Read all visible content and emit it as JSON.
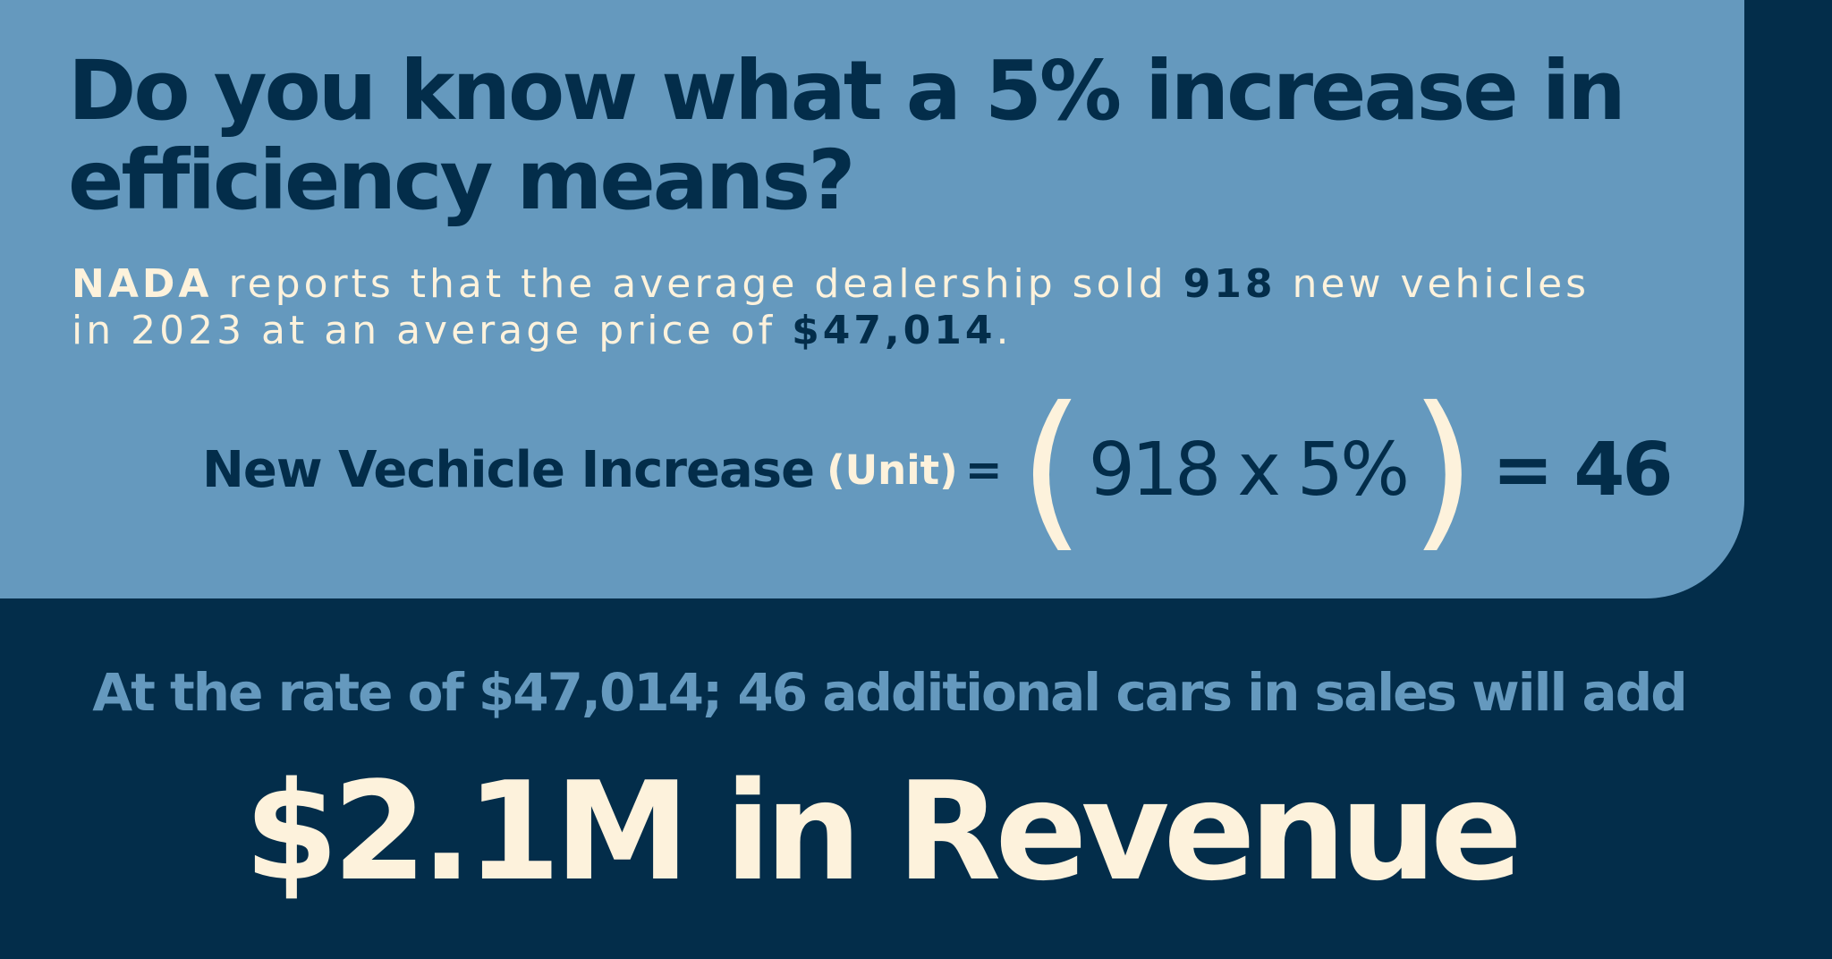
{
  "headline": "Do you know what a 5% increase in efficiency means?",
  "report": {
    "source": "NADA",
    "text_1": " reports that the average dealership sold ",
    "units_sold": "918",
    "text_2": " new vehicles in 2023 at an average price of ",
    "average_price": "$47,014",
    "text_3": "."
  },
  "formula": {
    "label": "New Vechicle Increase",
    "unit": "(Unit)",
    "equals": "=",
    "open_paren": "(",
    "expression": "918 x 5%",
    "close_paren": ")",
    "result": "= 46"
  },
  "rate_line": "At the rate of $47,014; 46 additional cars in sales will add",
  "big_total": "$2.1M in Revenue",
  "colors": {
    "navy": "#032d4a",
    "steel_blue": "#6599be",
    "cream": "#fdf2dc"
  }
}
